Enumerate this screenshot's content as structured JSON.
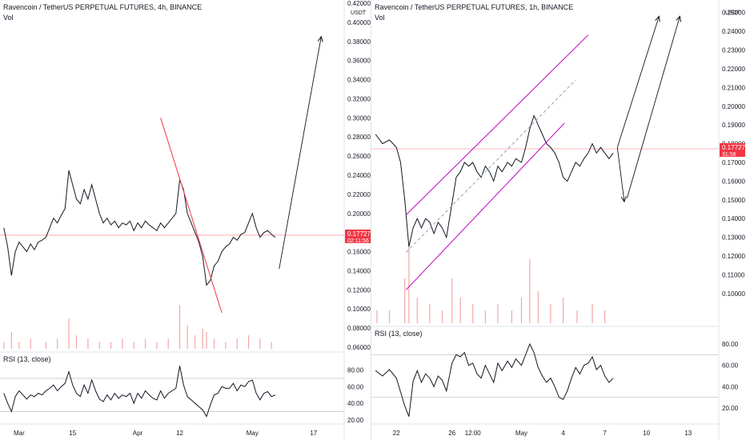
{
  "chart_data": [
    {
      "type": "line",
      "title": "Ravencoin / TetherUS PERPETUAL FUTURES, 4h, BINANCE",
      "vol_label": "Vol",
      "price_unit": "USDT",
      "price_ticks": [
        "0.42000",
        "0.40000",
        "0.38000",
        "0.36000",
        "0.34000",
        "0.32000",
        "0.30000",
        "0.28000",
        "0.26000",
        "0.24000",
        "0.22000",
        "0.20000",
        "0.18000",
        "0.16000",
        "0.14000",
        "0.12000",
        "0.10000",
        "0.08000",
        "0.06000"
      ],
      "ylim": [
        0.06,
        0.42
      ],
      "x_ticks": [
        {
          "label": "Mar",
          "day": 1
        },
        {
          "label": "15",
          "day": 15
        },
        {
          "label": "Apr",
          "day": 32
        },
        {
          "label": "12",
          "day": 43
        },
        {
          "label": "May",
          "day": 62
        },
        {
          "label": "17",
          "day": 78
        }
      ],
      "xlim": [
        -4,
        86
      ],
      "price_series": [
        [
          -3,
          0.185
        ],
        [
          -2,
          0.165
        ],
        [
          -1,
          0.135
        ],
        [
          0,
          0.16
        ],
        [
          1,
          0.17
        ],
        [
          2,
          0.165
        ],
        [
          3,
          0.16
        ],
        [
          4,
          0.168
        ],
        [
          5,
          0.162
        ],
        [
          6,
          0.17
        ],
        [
          7,
          0.172
        ],
        [
          8,
          0.175
        ],
        [
          9,
          0.185
        ],
        [
          10,
          0.195
        ],
        [
          11,
          0.19
        ],
        [
          12,
          0.198
        ],
        [
          13,
          0.205
        ],
        [
          14,
          0.245
        ],
        [
          15,
          0.23
        ],
        [
          16,
          0.215
        ],
        [
          17,
          0.21
        ],
        [
          18,
          0.225
        ],
        [
          19,
          0.215
        ],
        [
          20,
          0.23
        ],
        [
          21,
          0.215
        ],
        [
          22,
          0.2
        ],
        [
          23,
          0.19
        ],
        [
          24,
          0.195
        ],
        [
          25,
          0.188
        ],
        [
          26,
          0.192
        ],
        [
          27,
          0.185
        ],
        [
          28,
          0.19
        ],
        [
          29,
          0.188
        ],
        [
          30,
          0.192
        ],
        [
          31,
          0.182
        ],
        [
          32,
          0.19
        ],
        [
          33,
          0.185
        ],
        [
          34,
          0.192
        ],
        [
          35,
          0.188
        ],
        [
          36,
          0.185
        ],
        [
          37,
          0.182
        ],
        [
          38,
          0.19
        ],
        [
          39,
          0.185
        ],
        [
          40,
          0.19
        ],
        [
          41,
          0.195
        ],
        [
          42,
          0.2
        ],
        [
          43,
          0.235
        ],
        [
          44,
          0.225
        ],
        [
          45,
          0.2
        ],
        [
          46,
          0.19
        ],
        [
          47,
          0.18
        ],
        [
          48,
          0.17
        ],
        [
          49,
          0.155
        ],
        [
          50,
          0.125
        ],
        [
          51,
          0.13
        ],
        [
          52,
          0.145
        ],
        [
          53,
          0.15
        ],
        [
          54,
          0.16
        ],
        [
          55,
          0.165
        ],
        [
          56,
          0.168
        ],
        [
          57,
          0.175
        ],
        [
          58,
          0.172
        ],
        [
          59,
          0.178
        ],
        [
          60,
          0.18
        ],
        [
          61,
          0.19
        ],
        [
          62,
          0.2
        ],
        [
          63,
          0.185
        ],
        [
          64,
          0.175
        ],
        [
          65,
          0.18
        ],
        [
          66,
          0.182
        ],
        [
          67,
          0.178
        ],
        [
          68,
          0.175
        ]
      ],
      "current_price": "0.17727",
      "countdown": "02:11:56",
      "trend_line": [
        [
          38,
          0.3
        ],
        [
          54,
          0.096
        ]
      ],
      "arrow": [
        [
          69,
          0.142
        ],
        [
          80,
          0.385
        ]
      ],
      "rsi_label": "RSI (13, close)",
      "rsi_ticks": [
        "80.00",
        "60.00",
        "40.00",
        "20.00"
      ],
      "rsi_ylim": [
        15,
        95
      ],
      "rsi_levels": [
        70,
        30
      ],
      "rsi_series": [
        [
          -3,
          52
        ],
        [
          -2,
          40
        ],
        [
          -1,
          30
        ],
        [
          0,
          48
        ],
        [
          1,
          55
        ],
        [
          2,
          50
        ],
        [
          3,
          45
        ],
        [
          4,
          50
        ],
        [
          5,
          48
        ],
        [
          6,
          52
        ],
        [
          7,
          50
        ],
        [
          8,
          55
        ],
        [
          9,
          58
        ],
        [
          10,
          62
        ],
        [
          11,
          55
        ],
        [
          12,
          60
        ],
        [
          13,
          64
        ],
        [
          14,
          78
        ],
        [
          15,
          62
        ],
        [
          16,
          52
        ],
        [
          17,
          48
        ],
        [
          18,
          62
        ],
        [
          19,
          52
        ],
        [
          20,
          68
        ],
        [
          21,
          55
        ],
        [
          22,
          45
        ],
        [
          23,
          42
        ],
        [
          24,
          50
        ],
        [
          25,
          44
        ],
        [
          26,
          52
        ],
        [
          27,
          46
        ],
        [
          28,
          50
        ],
        [
          29,
          48
        ],
        [
          30,
          52
        ],
        [
          31,
          40
        ],
        [
          32,
          52
        ],
        [
          33,
          46
        ],
        [
          34,
          55
        ],
        [
          35,
          50
        ],
        [
          36,
          46
        ],
        [
          37,
          44
        ],
        [
          38,
          55
        ],
        [
          39,
          46
        ],
        [
          40,
          52
        ],
        [
          41,
          55
        ],
        [
          42,
          58
        ],
        [
          43,
          85
        ],
        [
          44,
          62
        ],
        [
          45,
          48
        ],
        [
          46,
          44
        ],
        [
          47,
          40
        ],
        [
          48,
          36
        ],
        [
          49,
          32
        ],
        [
          50,
          24
        ],
        [
          51,
          38
        ],
        [
          52,
          50
        ],
        [
          53,
          52
        ],
        [
          54,
          60
        ],
        [
          55,
          58
        ],
        [
          56,
          58
        ],
        [
          57,
          64
        ],
        [
          58,
          55
        ],
        [
          59,
          62
        ],
        [
          60,
          60
        ],
        [
          61,
          66
        ],
        [
          62,
          68
        ],
        [
          63,
          52
        ],
        [
          64,
          44
        ],
        [
          65,
          52
        ],
        [
          66,
          54
        ],
        [
          67,
          48
        ],
        [
          68,
          50
        ]
      ],
      "volume_series": [
        [
          -3,
          0.02
        ],
        [
          -1,
          0.05
        ],
        [
          1,
          0.02
        ],
        [
          4,
          0.03
        ],
        [
          8,
          0.02
        ],
        [
          11,
          0.03
        ],
        [
          14,
          0.09
        ],
        [
          16,
          0.04
        ],
        [
          19,
          0.03
        ],
        [
          22,
          0.02
        ],
        [
          25,
          0.02
        ],
        [
          28,
          0.03
        ],
        [
          31,
          0.02
        ],
        [
          34,
          0.03
        ],
        [
          37,
          0.02
        ],
        [
          40,
          0.03
        ],
        [
          43,
          0.13
        ],
        [
          45,
          0.07
        ],
        [
          47,
          0.04
        ],
        [
          49,
          0.06
        ],
        [
          50,
          0.05
        ],
        [
          52,
          0.03
        ],
        [
          55,
          0.02
        ],
        [
          58,
          0.03
        ],
        [
          61,
          0.04
        ],
        [
          64,
          0.03
        ],
        [
          67,
          0.02
        ]
      ]
    },
    {
      "type": "line",
      "title": "Ravencoin / TetherUS PERPETUAL FUTURES, 1h, BINANCE",
      "vol_label": "Vol",
      "price_unit": "USDT",
      "price_ticks": [
        "0.25000",
        "0.24000",
        "0.23000",
        "0.22000",
        "0.21000",
        "0.20000",
        "0.19000",
        "0.18000",
        "0.17000",
        "0.16000",
        "0.15000",
        "0.14000",
        "0.13000",
        "0.12000",
        "0.11000",
        "0.10000"
      ],
      "ylim": [
        0.085,
        0.255
      ],
      "x_ticks": [
        {
          "label": "22",
          "day": 22
        },
        {
          "label": "26",
          "day": 26
        },
        {
          "label": "12:00",
          "day": 27.5
        },
        {
          "label": "May",
          "day": 31
        },
        {
          "label": "4",
          "day": 34
        },
        {
          "label": "7",
          "day": 37
        },
        {
          "label": "10",
          "day": 40
        },
        {
          "label": "13",
          "day": 43
        }
      ],
      "xlim": [
        20.2,
        45.2
      ],
      "price_series": [
        [
          20.5,
          0.185
        ],
        [
          21,
          0.18
        ],
        [
          21.5,
          0.182
        ],
        [
          22,
          0.178
        ],
        [
          22.3,
          0.17
        ],
        [
          22.6,
          0.15
        ],
        [
          22.9,
          0.125
        ],
        [
          23.2,
          0.135
        ],
        [
          23.5,
          0.14
        ],
        [
          23.8,
          0.135
        ],
        [
          24.1,
          0.14
        ],
        [
          24.4,
          0.138
        ],
        [
          24.7,
          0.132
        ],
        [
          25,
          0.138
        ],
        [
          25.3,
          0.135
        ],
        [
          25.6,
          0.13
        ],
        [
          26,
          0.148
        ],
        [
          26.3,
          0.162
        ],
        [
          26.6,
          0.165
        ],
        [
          26.9,
          0.17
        ],
        [
          27.2,
          0.168
        ],
        [
          27.5,
          0.17
        ],
        [
          27.8,
          0.165
        ],
        [
          28.1,
          0.162
        ],
        [
          28.4,
          0.168
        ],
        [
          28.7,
          0.165
        ],
        [
          29,
          0.16
        ],
        [
          29.3,
          0.168
        ],
        [
          29.6,
          0.165
        ],
        [
          30,
          0.17
        ],
        [
          30.3,
          0.168
        ],
        [
          30.6,
          0.172
        ],
        [
          31,
          0.17
        ],
        [
          31.3,
          0.178
        ],
        [
          31.6,
          0.188
        ],
        [
          31.9,
          0.195
        ],
        [
          32.2,
          0.19
        ],
        [
          32.5,
          0.185
        ],
        [
          32.8,
          0.18
        ],
        [
          33.1,
          0.178
        ],
        [
          33.4,
          0.175
        ],
        [
          33.7,
          0.17
        ],
        [
          34,
          0.162
        ],
        [
          34.3,
          0.16
        ],
        [
          34.6,
          0.165
        ],
        [
          34.9,
          0.17
        ],
        [
          35.2,
          0.168
        ],
        [
          35.5,
          0.172
        ],
        [
          35.8,
          0.175
        ],
        [
          36.1,
          0.18
        ],
        [
          36.4,
          0.175
        ],
        [
          36.7,
          0.178
        ],
        [
          37,
          0.175
        ],
        [
          37.3,
          0.172
        ],
        [
          37.6,
          0.175
        ]
      ],
      "current_price": "0.17727",
      "countdown": "31:56",
      "channel_upper": [
        [
          22.7,
          0.142
        ],
        [
          35.8,
          0.238
        ]
      ],
      "channel_lower": [
        [
          22.7,
          0.102
        ],
        [
          34.1,
          0.191
        ]
      ],
      "channel_mid": [
        [
          22.7,
          0.122
        ],
        [
          34.9,
          0.214
        ]
      ],
      "arrows": [
        [
          [
            37.9,
            0.178
          ],
          [
            38.4,
            0.149
          ]
        ],
        [
          [
            37.9,
            0.178
          ],
          [
            40.9,
            0.248
          ]
        ],
        [
          [
            38.6,
            0.151
          ],
          [
            42.4,
            0.248
          ]
        ]
      ],
      "rsi_label": "RSI (13, close)",
      "rsi_ticks": [
        "80.00",
        "60.00",
        "40.00",
        "20.00"
      ],
      "rsi_ylim": [
        5,
        95
      ],
      "rsi_levels": [
        70,
        30
      ],
      "rsi_series": [
        [
          20.5,
          55
        ],
        [
          21,
          50
        ],
        [
          21.5,
          56
        ],
        [
          22,
          48
        ],
        [
          22.3,
          35
        ],
        [
          22.6,
          22
        ],
        [
          22.9,
          12
        ],
        [
          23.2,
          45
        ],
        [
          23.5,
          55
        ],
        [
          23.8,
          44
        ],
        [
          24.1,
          52
        ],
        [
          24.4,
          48
        ],
        [
          24.7,
          40
        ],
        [
          25,
          50
        ],
        [
          25.3,
          46
        ],
        [
          25.6,
          36
        ],
        [
          26,
          62
        ],
        [
          26.3,
          70
        ],
        [
          26.6,
          68
        ],
        [
          26.9,
          72
        ],
        [
          27.2,
          60
        ],
        [
          27.5,
          62
        ],
        [
          27.8,
          52
        ],
        [
          28.1,
          48
        ],
        [
          28.4,
          60
        ],
        [
          28.7,
          52
        ],
        [
          29,
          44
        ],
        [
          29.3,
          62
        ],
        [
          29.6,
          55
        ],
        [
          30,
          64
        ],
        [
          30.3,
          58
        ],
        [
          30.6,
          66
        ],
        [
          31,
          60
        ],
        [
          31.3,
          70
        ],
        [
          31.6,
          80
        ],
        [
          31.9,
          72
        ],
        [
          32.2,
          58
        ],
        [
          32.5,
          50
        ],
        [
          32.8,
          44
        ],
        [
          33.1,
          48
        ],
        [
          33.4,
          40
        ],
        [
          33.7,
          30
        ],
        [
          34,
          28
        ],
        [
          34.3,
          36
        ],
        [
          34.6,
          48
        ],
        [
          34.9,
          58
        ],
        [
          35.2,
          52
        ],
        [
          35.5,
          60
        ],
        [
          35.8,
          62
        ],
        [
          36.1,
          68
        ],
        [
          36.4,
          56
        ],
        [
          36.7,
          60
        ],
        [
          37,
          50
        ],
        [
          37.3,
          44
        ],
        [
          37.6,
          48
        ]
      ],
      "volume_series": [
        [
          20.6,
          0.02
        ],
        [
          21.5,
          0.02
        ],
        [
          22.6,
          0.07
        ],
        [
          22.9,
          0.12
        ],
        [
          23.5,
          0.04
        ],
        [
          24.4,
          0.03
        ],
        [
          25.3,
          0.02
        ],
        [
          26,
          0.07
        ],
        [
          26.6,
          0.04
        ],
        [
          27.5,
          0.03
        ],
        [
          28.4,
          0.02
        ],
        [
          29.3,
          0.03
        ],
        [
          30.3,
          0.02
        ],
        [
          31,
          0.04
        ],
        [
          31.6,
          0.1
        ],
        [
          32.2,
          0.05
        ],
        [
          33.1,
          0.03
        ],
        [
          34,
          0.04
        ],
        [
          35,
          0.02
        ],
        [
          36.1,
          0.03
        ],
        [
          37,
          0.02
        ]
      ]
    }
  ],
  "colors": {
    "line": "#131722",
    "grid_text": "#131722",
    "current_price_line": "#ff9f9f",
    "current_price_label": "#f23645",
    "red_trend": "#f23645",
    "channel": "#c000c0",
    "channel_mid": "#8fa7b7",
    "volume": "#f4a6a6",
    "rsi_level": "#c9c9c9"
  }
}
